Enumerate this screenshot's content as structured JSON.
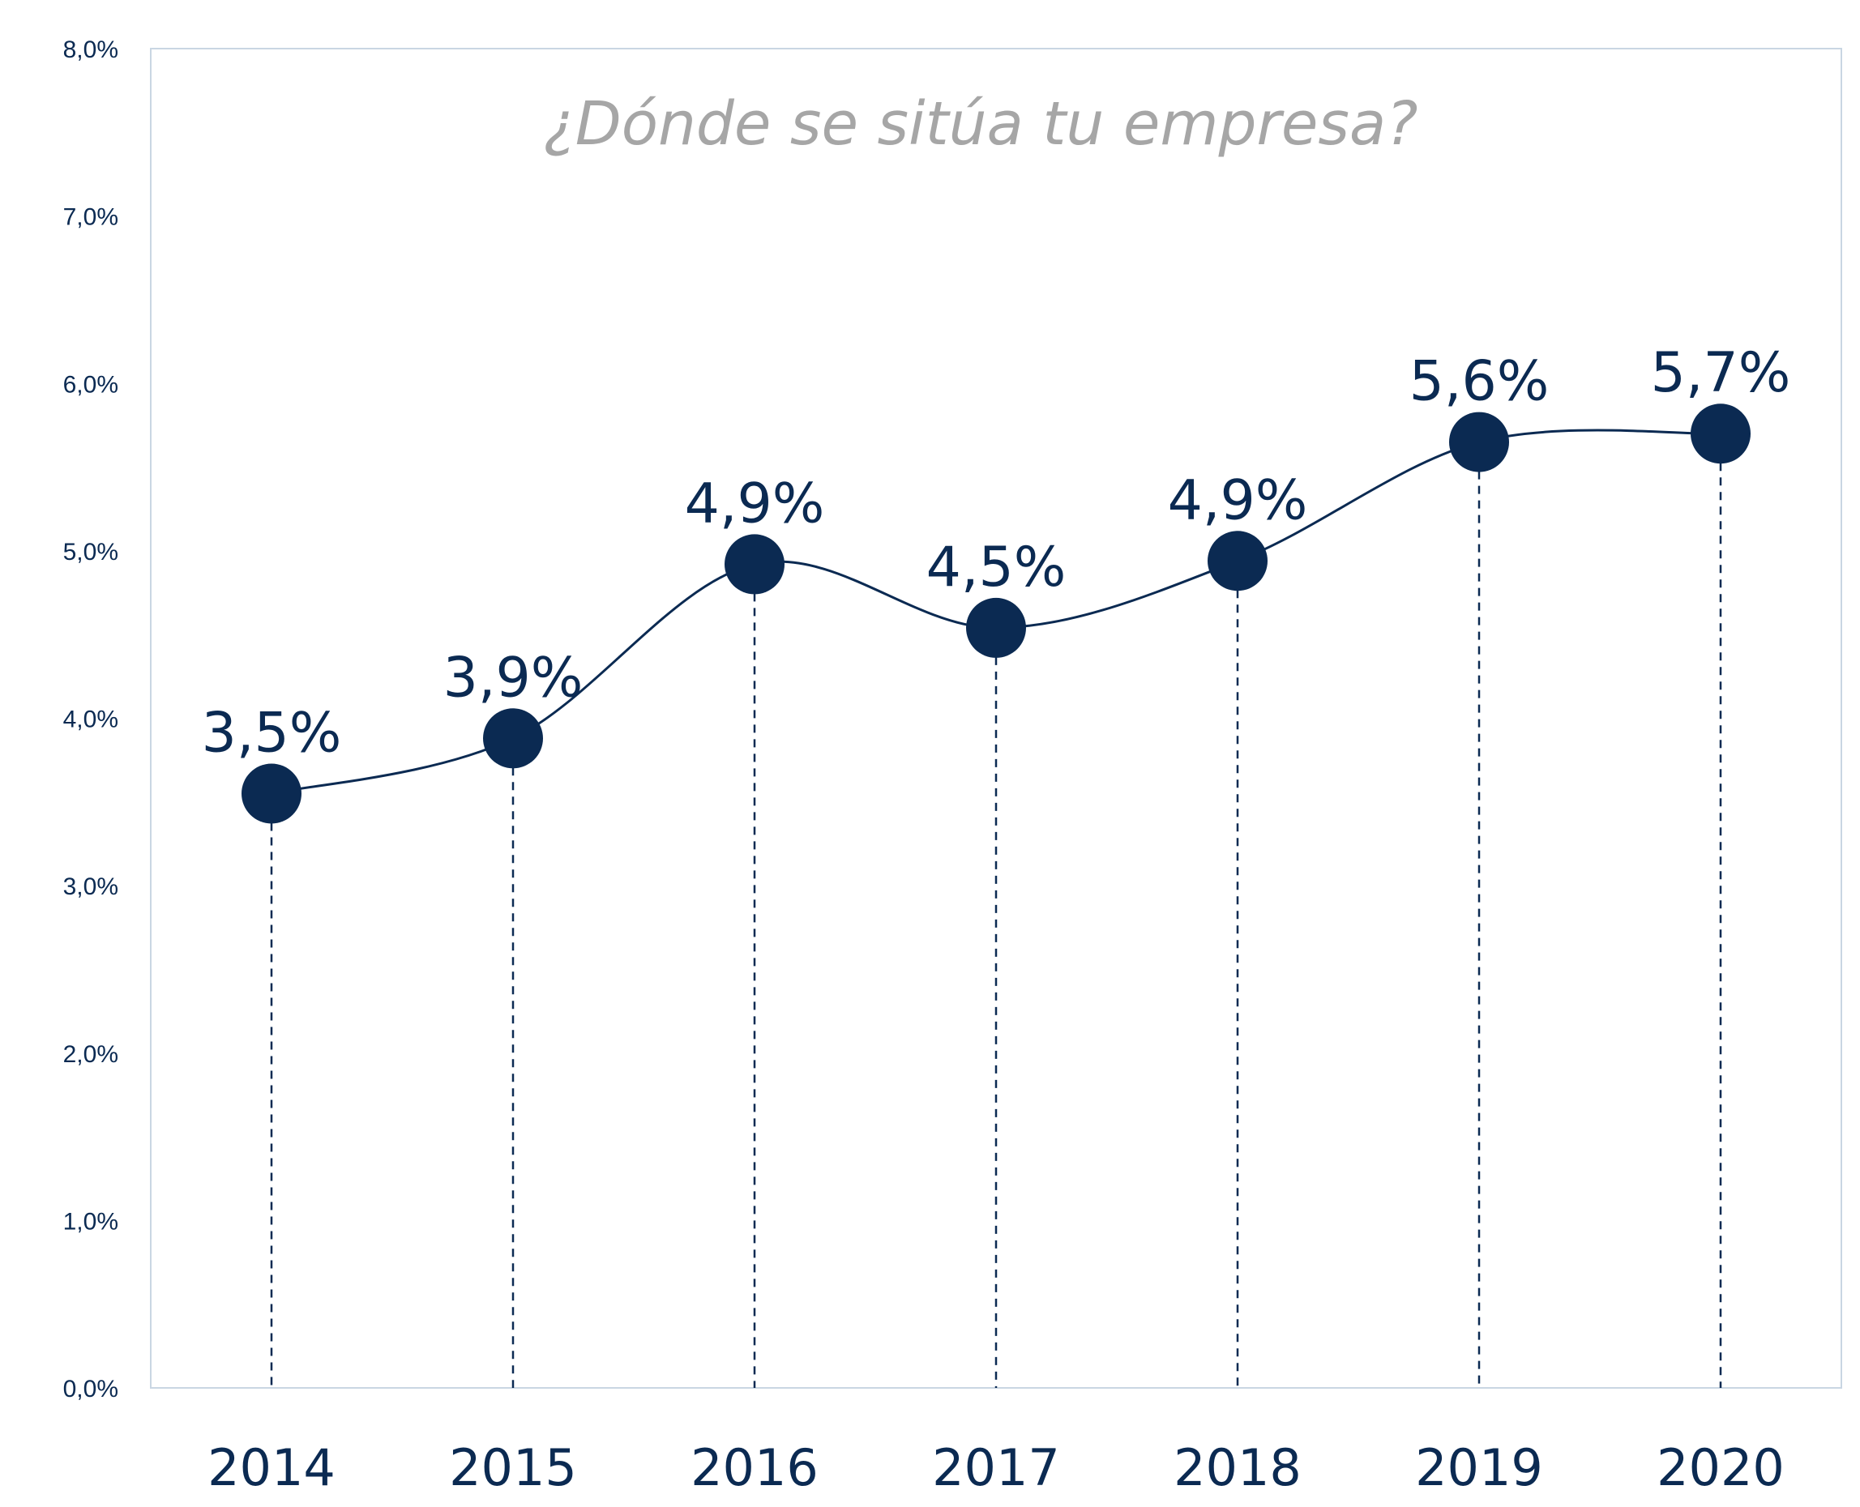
{
  "chart_data": {
    "type": "line",
    "title": "¿Dónde se sitúa tu empresa?",
    "xlabel": "",
    "ylabel": "",
    "categories": [
      "2014",
      "2015",
      "2016",
      "2017",
      "2018",
      "2019",
      "2020"
    ],
    "series": [
      {
        "values": [
          3.55,
          3.88,
          4.92,
          4.54,
          4.94,
          5.65,
          5.7
        ],
        "data_labels": [
          "3,5%",
          "3,9%",
          "4,9%",
          "4,5%",
          "4,9%",
          "5,6%",
          "5,7%"
        ]
      }
    ],
    "ylim": [
      0,
      8
    ],
    "y_ticks": [
      "0,0%",
      "1,0%",
      "2,0%",
      "3,0%",
      "4,0%",
      "5,0%",
      "6,0%",
      "7,0%",
      "8,0%"
    ],
    "grid": false,
    "smooth": true,
    "drop_lines": true,
    "colors": {
      "series": "#0b2a52",
      "title": "#a6a6a6",
      "axis": "#c9d6e3"
    }
  }
}
